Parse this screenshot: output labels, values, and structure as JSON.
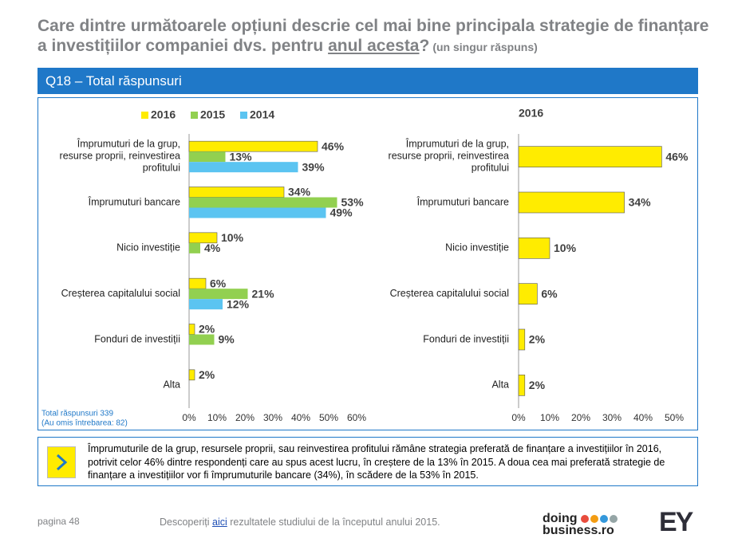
{
  "slide": {
    "title": [
      "Care dintre următoarele opțiuni descrie cel mai bine principala strategie de finanțare a investițiilor companiei dvs. pentru ",
      "anul acesta",
      "?",
      "(un singur răspuns)"
    ],
    "header": "Q18 – Total răspunsuri",
    "note": [
      "Total răspunsuri 339",
      "(Au omis întrebarea: 82)"
    ],
    "commentary": "Împrumuturile de la grup, resursele proprii, sau reinvestirea profitului rămâne strategia preferată de finanțare a investițiilor în 2016, potrivit celor 46% dintre respondenți care au spus acest lucru, în creștere de la 13% în 2015. A doua cea mai preferată strategie de finanțare a investițiilor vor fi împrumuturile bancare (34%), în scădere de la 53% în 2015.",
    "page": "pagina 48",
    "footer": [
      "Descoperiți ",
      "aici",
      " rezultatele studiului de la începutul anului 2015."
    ],
    "logo": [
      "doing",
      "business.ro"
    ],
    "brand": "EY"
  },
  "chart_data": [
    {
      "type": "bar",
      "orientation": "horizontal",
      "legend": "top",
      "categories": [
        "Împrumuturi de la grup, resurse proprii, reinvestirea profitului",
        "Împrumuturi bancare",
        "Nicio investiție",
        "Creșterea capitalului social",
        "Fonduri de investiții",
        "Alta"
      ],
      "series": [
        {
          "name": "2016",
          "color": "#ffec00",
          "values": [
            46,
            34,
            10,
            6,
            2,
            2
          ],
          "value_labels": [
            "46%",
            "34%",
            "10%",
            "6%",
            "2%",
            "2%"
          ]
        },
        {
          "name": "2015",
          "color": "#92d050",
          "values": [
            13,
            53,
            4,
            21,
            9,
            null
          ],
          "value_labels": [
            "13%",
            "53%",
            "4%",
            "21%",
            "9%",
            null
          ]
        },
        {
          "name": "2014",
          "color": "#5bc4f1",
          "values": [
            39,
            49,
            null,
            12,
            null,
            null
          ],
          "value_labels": [
            "39%",
            "49%",
            null,
            "12%",
            null,
            null
          ]
        }
      ],
      "xlim": [
        0,
        60
      ],
      "xticks": [
        {
          "value": 0,
          "label": "0%"
        },
        {
          "value": 10,
          "label": "10%"
        },
        {
          "value": 20,
          "label": "20%"
        },
        {
          "value": 30,
          "label": "30%"
        },
        {
          "value": 40,
          "label": "40%"
        },
        {
          "value": 50,
          "label": "50%"
        },
        {
          "value": 60,
          "label": "60%"
        }
      ]
    },
    {
      "type": "bar",
      "orientation": "horizontal",
      "title": "2016",
      "categories": [
        "Împrumuturi de la grup, resurse proprii, reinvestirea profitului",
        "Împrumuturi bancare",
        "Nicio investiție",
        "Creșterea capitalului social",
        "Fonduri de investiții",
        "Alta"
      ],
      "series": [
        {
          "name": "2016",
          "color": "#ffec00",
          "values": [
            46,
            34,
            10,
            6,
            2,
            2
          ],
          "value_labels": [
            "46%",
            "34%",
            "10%",
            "6%",
            "2%",
            "2%"
          ]
        }
      ],
      "xlim": [
        0,
        50
      ],
      "xticks": [
        {
          "value": 0,
          "label": "0%"
        },
        {
          "value": 10,
          "label": "10%"
        },
        {
          "value": 20,
          "label": "20%"
        },
        {
          "value": 30,
          "label": "30%"
        },
        {
          "value": 40,
          "label": "40%"
        },
        {
          "value": 50,
          "label": "50%"
        }
      ]
    }
  ]
}
